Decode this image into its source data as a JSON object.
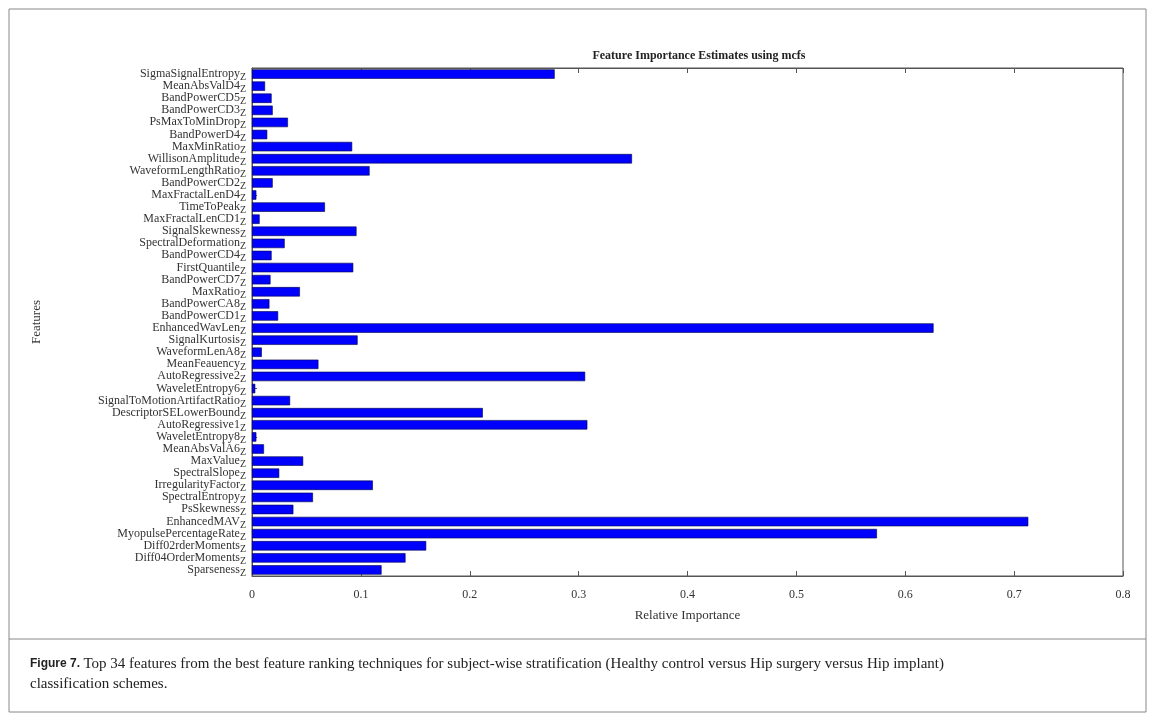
{
  "chart_data": {
    "type": "bar",
    "orientation": "horizontal",
    "title": "Feature Importance Estimates using mcfs",
    "xlabel": "Relative Importance",
    "ylabel": "Features",
    "categories": [
      "SigmaSignalEntropy$_{Z}$",
      "MeanAbsValD4$_{Z}$",
      "BandPowerCD5$_{Z}$",
      "BandPowerCD3$_{Z}$",
      "PsMaxToMinDrop$_{Z}$",
      "BandPowerD4$_{Z}$",
      "MaxMinRatio$_{Z}$",
      "WillisonAmplitude$_{Z}$",
      "WaveformLengthRatio$_{Z}$",
      "BandPowerCD2$_{Z}$",
      "MaxFractalLenD4$_{Z}$",
      "TimeToPeak$_{Z}$",
      "MaxFractalLenCD1$_{Z}$",
      "SignalSkewness$_{Z}$",
      "SpectralDeformation$_{Z}$",
      "BandPowerCD4$_{Z}$",
      "FirstQuantile$_{Z}$",
      "BandPowerCD7$_{Z}$",
      "MaxRatio$_{Z}$",
      "BandPowerCA8$_{Z}$",
      "BandPowerCD1$_{Z}$",
      "EnhancedWavLen$_{Z}$",
      "SignalKurtosis$_{Z}$",
      "WaveformLenA8$_{Z}$",
      "MeanFeauency$_{Z}$",
      "AutoRegressive2$_{Z}$",
      "WaveletEntropy6$_{Z}$",
      "SignalToMotionArtifactRatio$_{Z}$",
      "DescriptorSELowerBound$_{Z}$",
      "AutoRegressive1$_{Z}$",
      "WaveletEntropy8$_{Z}$",
      "MeanAbsValA6$_{Z}$",
      "MaxValue$_{Z}$",
      "SpectralSlope$_{Z}$",
      "IrregularityFactor$_{Z}$",
      "SpectralEntropy$_{Z}$",
      "PsSkewness$_{Z}$",
      "EnhancedMAV$_{Z}$",
      "MyopulsePercentageRate$_{Z}$",
      "Diff02rderMoments$_{Z}$",
      "Diff04OrderMoments$_{Z}$",
      "Sparseness$_{Z}$"
    ],
    "values": [
      0.278,
      0.012,
      0.018,
      0.019,
      0.033,
      0.014,
      0.092,
      0.349,
      0.108,
      0.019,
      0.004,
      0.067,
      0.007,
      0.096,
      0.03,
      0.018,
      0.093,
      0.017,
      0.044,
      0.016,
      0.024,
      0.626,
      0.097,
      0.009,
      0.061,
      0.306,
      0.003,
      0.035,
      0.212,
      0.308,
      0.004,
      0.011,
      0.047,
      0.025,
      0.111,
      0.056,
      0.038,
      0.713,
      0.574,
      0.16,
      0.141,
      0.119
    ],
    "color": "#0000ff",
    "xlim": [
      0,
      0.8
    ],
    "xticks": [
      0,
      0.1,
      0.2,
      0.3,
      0.4,
      0.5,
      0.6,
      0.7,
      0.8
    ],
    "grid": false,
    "annotations": [
      "Figure 7. Top 34 features from the best feature ranking techniques for subject-wise stratification (Healthy control versus Hip surgery versus Hip implant) classification schemes."
    ]
  }
}
